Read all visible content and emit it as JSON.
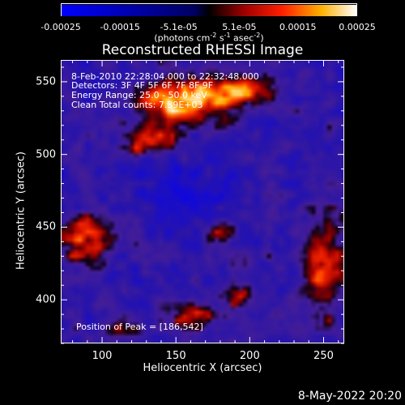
{
  "chart_data": {
    "type": "heatmap",
    "title": "Reconstructed RHESSI Image",
    "xlabel": "Heliocentric X (arcsec)",
    "ylabel": "Heliocentric Y (arcsec)",
    "xlim": [
      72,
      264
    ],
    "ylim": [
      370,
      565
    ],
    "xticks": [
      100,
      150,
      200,
      250
    ],
    "yticks": [
      400,
      450,
      500,
      550
    ],
    "colorbar": {
      "range": [
        -0.00025,
        0.00025
      ],
      "tick_labels": [
        "-0.00025",
        "-0.00015",
        "-5.1e-05",
        "5.1e-05",
        "0.00015",
        "0.00025"
      ],
      "tick_values": [
        -0.00025,
        -0.00015,
        -5.1e-05,
        5.1e-05,
        0.00015,
        0.00025
      ],
      "unit_prefix": "(photons cm",
      "unit_exp1": "-2",
      "unit_mid": " s",
      "unit_exp2": "-1",
      "unit_mid2": " asec",
      "unit_exp3": "-2",
      "unit_suffix": ")"
    },
    "annotations": {
      "time": "8-Feb-2010 22:28:04.000 to 22:32:48.000",
      "detectors": "Detectors: 3F 4F 5F 6F 7F 8F 9F",
      "energy": "Energy Range: 25.0 - 50.0 keV",
      "clean": "Clean     Total counts: 7.39E+03",
      "peak": "Position of Peak = [186,542]"
    },
    "peak": [
      186,
      542
    ]
  },
  "footer": {
    "date": "8-May-2022 20:20"
  }
}
